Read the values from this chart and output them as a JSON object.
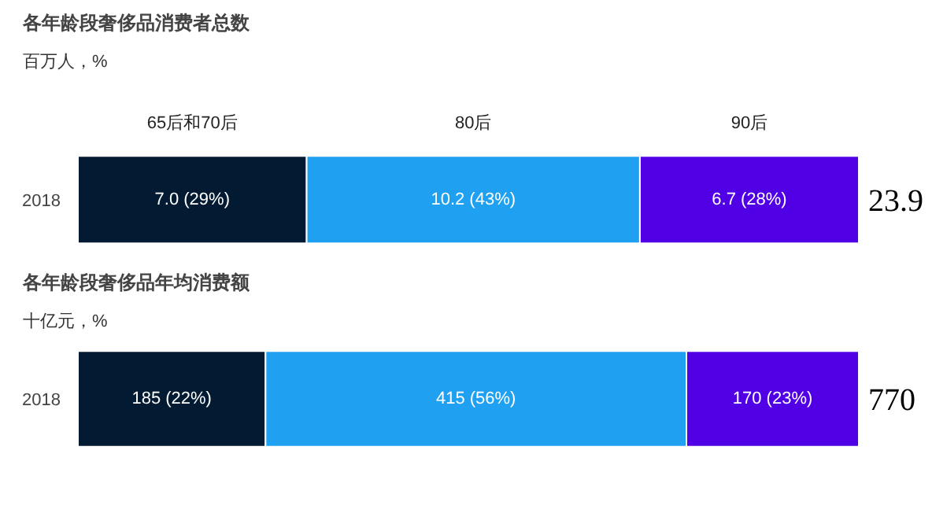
{
  "chart_data": [
    {
      "type": "bar",
      "orientation": "horizontal",
      "stacked": true,
      "title": "各年龄段奢侈品消费者总数",
      "subtitle": "百万人，%",
      "categories": [
        "2018"
      ],
      "tick_labels": "y",
      "grid": false,
      "series": [
        {
          "name": "65后和70后",
          "color": "#031a33",
          "values": [
            7.0
          ],
          "value_labels": [
            "7.0 (29%)"
          ]
        },
        {
          "name": "80后",
          "color": "#1fa0f0",
          "values": [
            10.2
          ],
          "value_labels": [
            "10.2 (43%)"
          ]
        },
        {
          "name": "90后",
          "color": "#5100e6",
          "values": [
            6.7
          ],
          "value_labels": [
            "6.7 (28%)"
          ]
        }
      ],
      "totals": [
        "23.9"
      ]
    },
    {
      "type": "bar",
      "orientation": "horizontal",
      "stacked": true,
      "title": "各年龄段奢侈品年均消费额",
      "subtitle": "十亿元，%",
      "categories": [
        "2018"
      ],
      "tick_labels": "y",
      "grid": false,
      "series": [
        {
          "color": "#031a33",
          "values": [
            185
          ],
          "value_labels": [
            "185 (22%)"
          ]
        },
        {
          "color": "#1fa0f0",
          "values": [
            415
          ],
          "value_labels": [
            "415 (56%)"
          ]
        },
        {
          "color": "#5100e6",
          "values": [
            170
          ],
          "value_labels": [
            "170 (23%)"
          ]
        }
      ],
      "totals": [
        "770"
      ]
    }
  ]
}
